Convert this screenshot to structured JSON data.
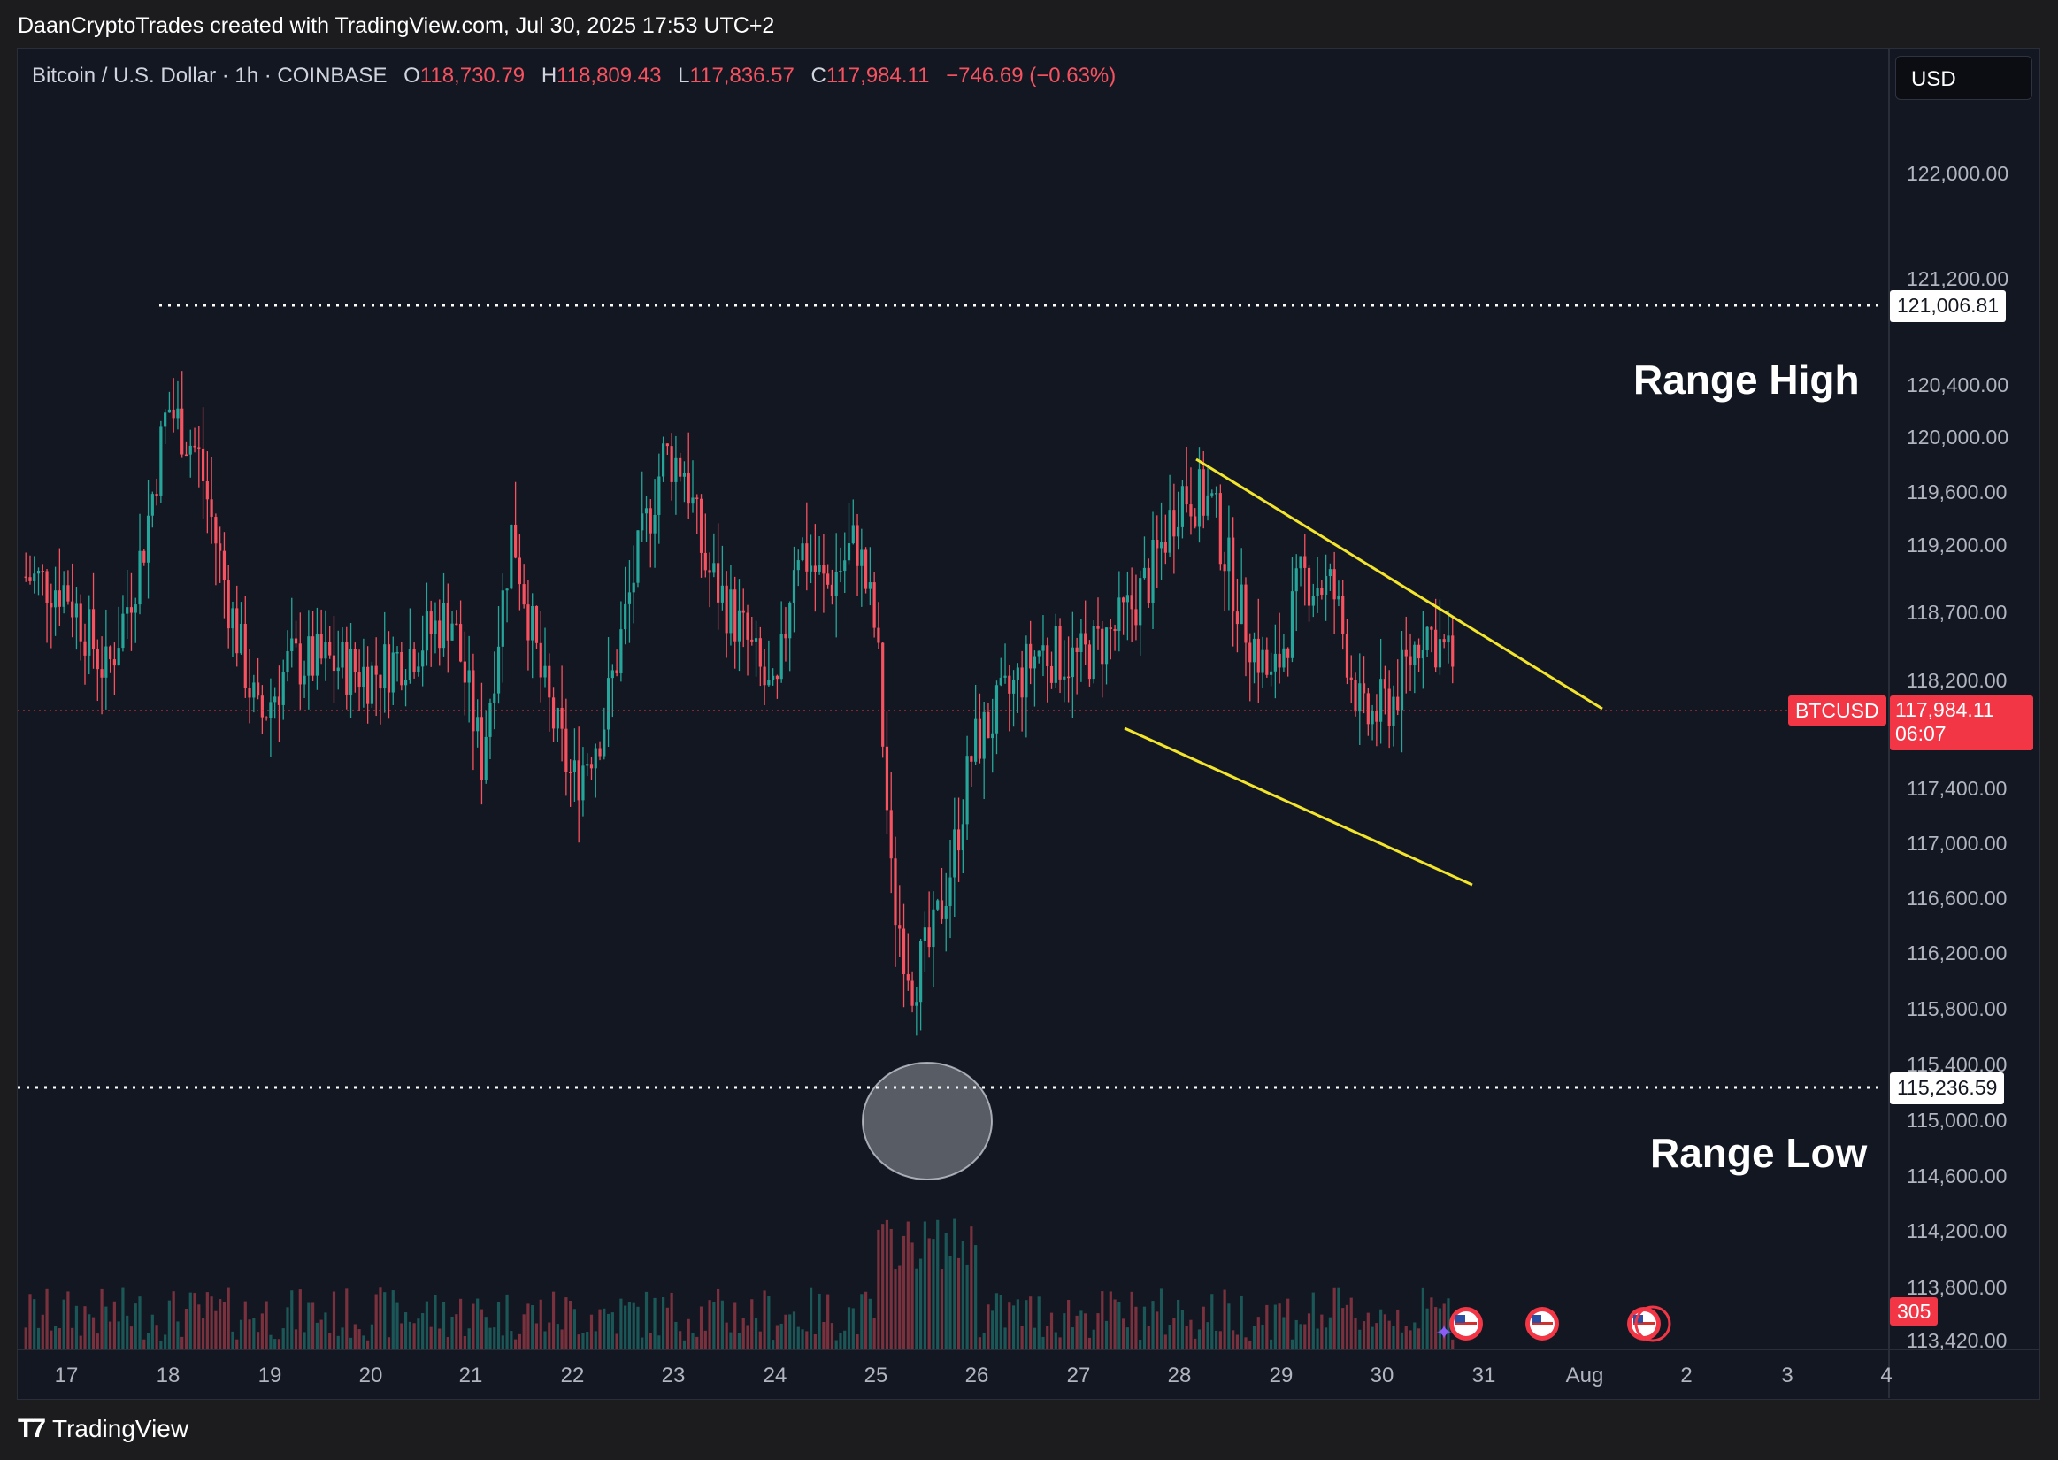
{
  "header": {
    "credit": "DaanCryptoTrades created with TradingView.com, Jul 30, 2025 17:53 UTC+2"
  },
  "legend": {
    "symbol": "Bitcoin / U.S. Dollar · 1h · COINBASE",
    "open_label": "O",
    "open": "118,730.79",
    "high_label": "H",
    "high": "118,809.43",
    "low_label": "L",
    "low": "117,836.57",
    "close_label": "C",
    "close": "117,984.11",
    "change": "−746.69 (−0.63%)"
  },
  "currency": "USD",
  "annotations": {
    "range_high": "Range High",
    "range_low": "Range Low"
  },
  "tags": {
    "range_high_value": "121,006.81",
    "range_low_value": "115,236.59",
    "symbol": "BTCUSD",
    "last_price": "117,984.11",
    "countdown": "06:07",
    "volume": "305"
  },
  "footer": {
    "brand": "TradingView",
    "brand_icon": "tradingview-logo-icon"
  },
  "colors": {
    "up": "#26a69a",
    "down": "#f7525f",
    "channel": "#f2e52c",
    "bg": "#131722"
  },
  "chart_data": {
    "type": "candlestick",
    "title": "Bitcoin / U.S. Dollar · 1h · COINBASE",
    "y_ticks": [
      "122,000.00",
      "121,200.00",
      "120,400.00",
      "120,000.00",
      "119,600.00",
      "119,200.00",
      "118,700.00",
      "118,200.00",
      "117,400.00",
      "117,000.00",
      "116,600.00",
      "116,200.00",
      "115,800.00",
      "115,400.00",
      "115,000.00",
      "114,600.00",
      "114,200.00",
      "113,800.00",
      "113,420.00"
    ],
    "x_ticks": [
      "17",
      "18",
      "19",
      "20",
      "21",
      "22",
      "23",
      "24",
      "25",
      "26",
      "27",
      "28",
      "29",
      "30",
      "31",
      "Aug",
      "2",
      "3",
      "4"
    ],
    "ylim": [
      113350,
      122550
    ],
    "x_domain": [
      16.5,
      4.3
    ],
    "series_close_approx": [
      {
        "x": 16.6,
        "close": 118700
      },
      {
        "x": 17.0,
        "close": 118600
      },
      {
        "x": 17.4,
        "close": 117900
      },
      {
        "x": 17.75,
        "close": 118900
      },
      {
        "x": 18.0,
        "close": 120100
      },
      {
        "x": 18.3,
        "close": 119700
      },
      {
        "x": 18.6,
        "close": 118500
      },
      {
        "x": 18.9,
        "close": 117500
      },
      {
        "x": 19.2,
        "close": 118000
      },
      {
        "x": 19.6,
        "close": 118000
      },
      {
        "x": 20.0,
        "close": 117900
      },
      {
        "x": 20.4,
        "close": 118100
      },
      {
        "x": 20.8,
        "close": 118400
      },
      {
        "x": 21.1,
        "close": 117200
      },
      {
        "x": 21.4,
        "close": 119100
      },
      {
        "x": 21.7,
        "close": 117800
      },
      {
        "x": 22.0,
        "close": 117000
      },
      {
        "x": 22.3,
        "close": 117500
      },
      {
        "x": 22.6,
        "close": 118700
      },
      {
        "x": 22.9,
        "close": 119700
      },
      {
        "x": 23.1,
        "close": 119600
      },
      {
        "x": 23.3,
        "close": 118800
      },
      {
        "x": 23.7,
        "close": 118200
      },
      {
        "x": 24.0,
        "close": 117600
      },
      {
        "x": 24.2,
        "close": 119000
      },
      {
        "x": 24.5,
        "close": 118600
      },
      {
        "x": 24.8,
        "close": 119000
      },
      {
        "x": 25.0,
        "close": 118200
      },
      {
        "x": 25.15,
        "close": 116100
      },
      {
        "x": 25.35,
        "close": 115400
      },
      {
        "x": 25.55,
        "close": 115700
      },
      {
        "x": 25.75,
        "close": 116400
      },
      {
        "x": 25.95,
        "close": 117300
      },
      {
        "x": 26.2,
        "close": 117600
      },
      {
        "x": 26.6,
        "close": 118100
      },
      {
        "x": 27.0,
        "close": 118000
      },
      {
        "x": 27.4,
        "close": 118300
      },
      {
        "x": 27.7,
        "close": 118700
      },
      {
        "x": 28.0,
        "close": 119400
      },
      {
        "x": 28.3,
        "close": 119300
      },
      {
        "x": 28.6,
        "close": 118400
      },
      {
        "x": 28.9,
        "close": 117800
      },
      {
        "x": 29.2,
        "close": 118700
      },
      {
        "x": 29.5,
        "close": 118600
      },
      {
        "x": 29.8,
        "close": 117500
      },
      {
        "x": 30.1,
        "close": 117700
      },
      {
        "x": 30.4,
        "close": 118300
      },
      {
        "x": 30.7,
        "close": 117984
      }
    ],
    "levels": [
      {
        "name": "Range High",
        "value": 121006.81
      },
      {
        "name": "Range Low",
        "value": 115236.59
      },
      {
        "name": "Last",
        "value": 117984.11
      }
    ],
    "channel": {
      "upper": [
        {
          "x": 28.0,
          "y": 119850
        },
        {
          "x": 31.15,
          "y": 118020
        }
      ],
      "lower": [
        {
          "x": 27.45,
          "y": 118050
        },
        {
          "x": 30.9,
          "y": 116750
        }
      ]
    },
    "volume_last": 305,
    "grid": false,
    "legend": "top-left"
  }
}
